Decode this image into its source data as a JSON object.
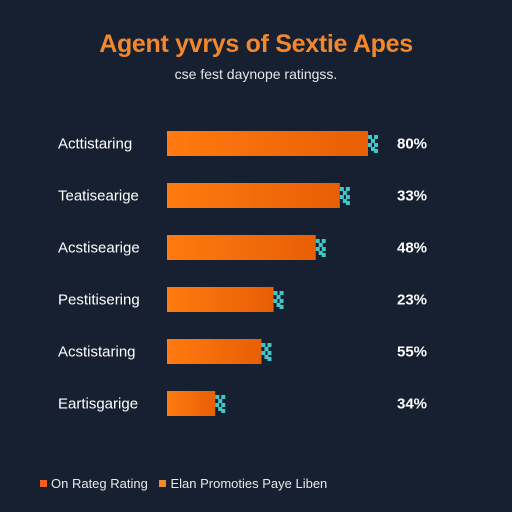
{
  "chart_data": {
    "type": "bar",
    "orientation": "horizontal",
    "title": "Agent yvrys of Sextie Apes",
    "subtitle": "cse fest daynope ratingss.",
    "categories": [
      "Acttistaring",
      "Teatisearige",
      "Acstisearige",
      "Pestitisering",
      "Acstistaring",
      "Eartisgarige"
    ],
    "values": [
      80,
      33,
      48,
      23,
      55,
      34
    ],
    "value_labels": [
      "80%",
      "33%",
      "48%",
      "23%",
      "55%",
      "34%"
    ],
    "bar_extent": [
      1.0,
      0.86,
      0.74,
      0.53,
      0.47,
      0.24
    ],
    "legend_position": "bottom-left",
    "legend": [
      {
        "label": "On Rateg Rating",
        "color": "#f2621e"
      },
      {
        "label": "Elan Promoties Paye Liben",
        "color": "#f08a2a"
      }
    ],
    "colors": {
      "bar": "#ff7a10",
      "bar_dark": "#e85f05",
      "bar_tip": "#3fc8c8",
      "title": "#f2872d",
      "background": "#172030"
    },
    "grid": false
  }
}
